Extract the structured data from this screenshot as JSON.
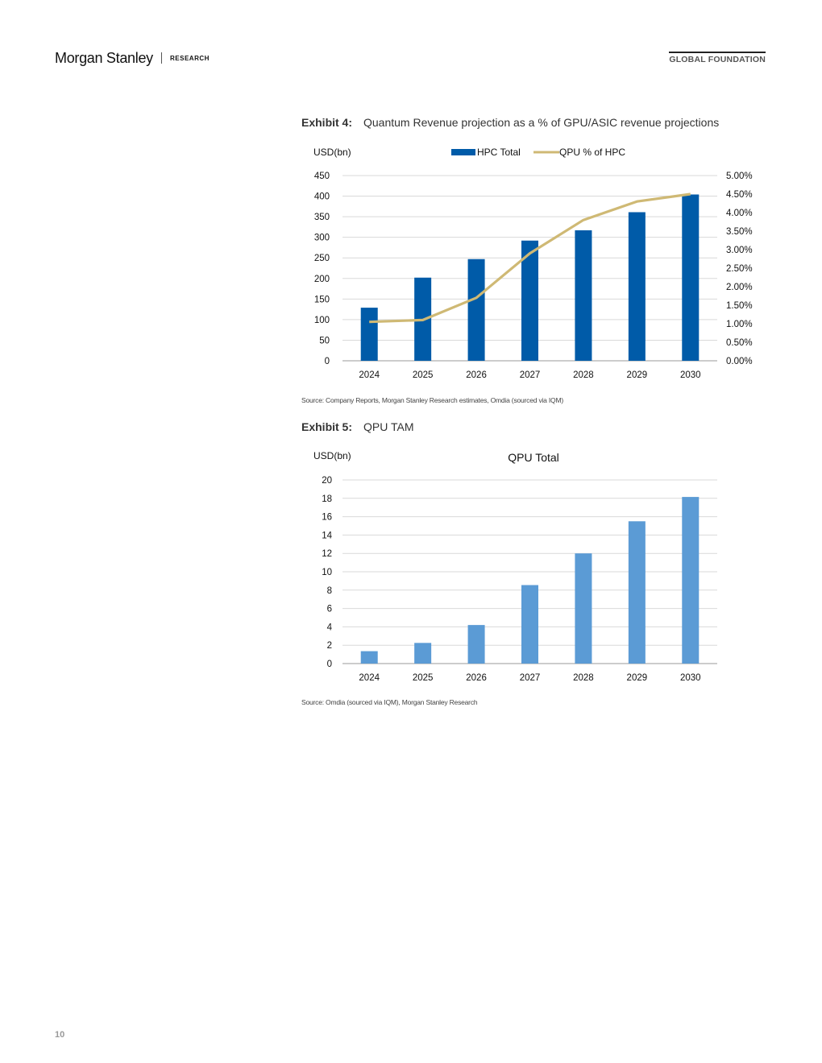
{
  "header": {
    "brand": "Morgan Stanley",
    "division": "RESEARCH",
    "section": "GLOBAL FOUNDATION"
  },
  "exhibit4": {
    "label": "Exhibit 4:",
    "title": "Quantum Revenue projection as a % of GPU/ASIC revenue projections",
    "source": "Source: Company Reports, Morgan Stanley Research estimates, Omdia (sourced via IQM)"
  },
  "exhibit5": {
    "label": "Exhibit 5:",
    "title": "QPU TAM",
    "source": "Source: Omdia (sourced via IQM), Morgan Stanley Research"
  },
  "page_number": "10",
  "colors": {
    "hpc_bar": "#005ba8",
    "qpu_line": "#cfb974",
    "qpu_bar": "#5b9bd5",
    "grid": "#d9d9d9",
    "axis": "#999999"
  },
  "chart_data": [
    {
      "type": "bar",
      "categories": [
        "2024",
        "2025",
        "2026",
        "2027",
        "2028",
        "2029",
        "2030"
      ],
      "series": [
        {
          "name": "HPC Total",
          "type": "bar",
          "axis": "left",
          "values": [
            129,
            202,
            247,
            292,
            317,
            361,
            404
          ]
        },
        {
          "name": "QPU % of HPC",
          "type": "line",
          "axis": "right",
          "values": [
            1.05,
            1.1,
            1.7,
            2.9,
            3.8,
            4.3,
            4.5
          ]
        }
      ],
      "ylabel": "USD(bn)",
      "ylim": [
        0,
        450
      ],
      "yticks": [
        "0",
        "50",
        "100",
        "150",
        "200",
        "250",
        "300",
        "350",
        "400",
        "450"
      ],
      "y2lim": [
        0,
        5
      ],
      "y2ticks": [
        "0.00%",
        "0.50%",
        "1.00%",
        "1.50%",
        "2.00%",
        "2.50%",
        "3.00%",
        "3.50%",
        "4.00%",
        "4.50%",
        "5.00%"
      ],
      "legend": "top",
      "grid": true
    },
    {
      "type": "bar",
      "title": "QPU Total",
      "categories": [
        "2024",
        "2025",
        "2026",
        "2027",
        "2028",
        "2029",
        "2030"
      ],
      "values": [
        1.35,
        2.25,
        4.2,
        8.55,
        12.0,
        15.5,
        18.15
      ],
      "ylabel": "USD(bn)",
      "ylim": [
        0,
        20
      ],
      "yticks": [
        "0",
        "2",
        "4",
        "6",
        "8",
        "10",
        "12",
        "14",
        "16",
        "18",
        "20"
      ],
      "grid": true
    }
  ]
}
